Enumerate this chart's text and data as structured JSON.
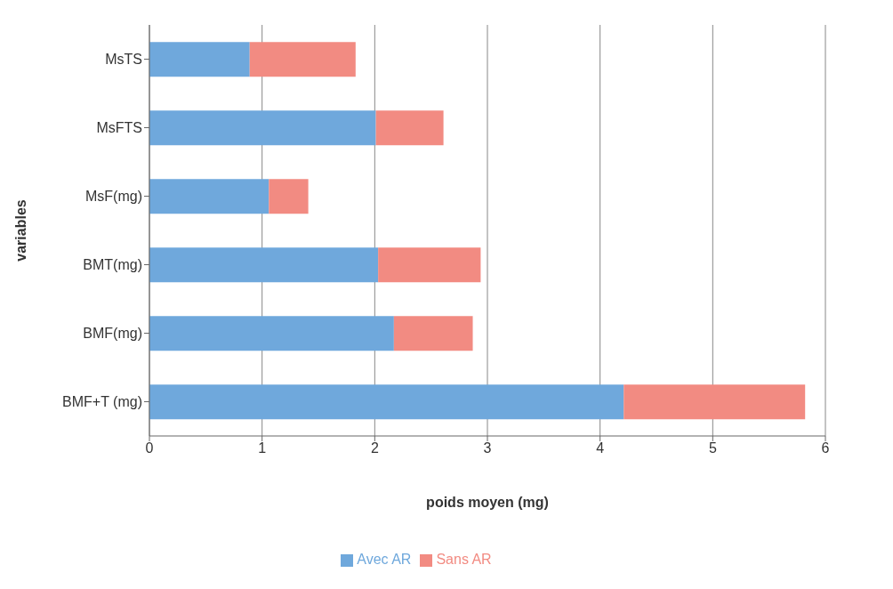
{
  "chart_data": {
    "type": "bar",
    "orientation": "horizontal",
    "stacked": true,
    "xlabel": "poids moyen  (mg)",
    "ylabel": "variables",
    "categories": [
      "MsTS",
      "MsFTS",
      "MsF(mg)",
      "BMT(mg)",
      "BMF(mg)",
      "BMF+T (mg)"
    ],
    "series": [
      {
        "name": "Avec AR",
        "color": "#6fa8dc",
        "values": [
          0.89,
          2.01,
          1.06,
          2.03,
          2.17,
          4.21
        ]
      },
      {
        "name": "Sans AR",
        "color": "#f28b82",
        "values": [
          0.94,
          0.6,
          0.35,
          0.91,
          0.7,
          1.61
        ]
      }
    ],
    "xlim": [
      0,
      6
    ],
    "xticks": [
      0,
      1,
      2,
      3,
      4,
      5,
      6
    ],
    "grid": "x",
    "legend": "bottom"
  }
}
